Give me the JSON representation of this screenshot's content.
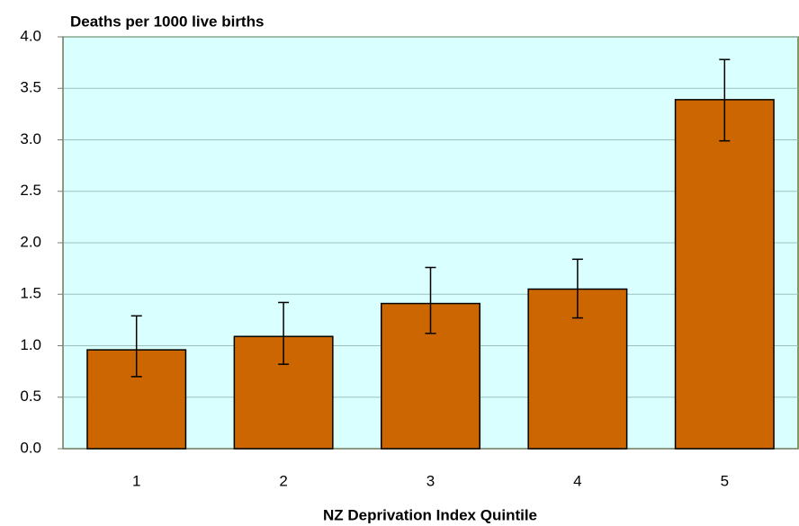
{
  "chart_data": {
    "type": "bar",
    "y_label": "Deaths per 1000 live births",
    "x_label": "NZ Deprivation Index Quintile",
    "categories": [
      "1",
      "2",
      "3",
      "4",
      "5"
    ],
    "values": [
      0.96,
      1.09,
      1.41,
      1.55,
      3.39
    ],
    "error_low": [
      0.7,
      0.82,
      1.12,
      1.27,
      2.99
    ],
    "error_high": [
      1.29,
      1.42,
      1.76,
      1.84,
      3.78
    ],
    "color": "#cc6600",
    "ylim": [
      0,
      4
    ],
    "yticks": [
      {
        "value": 0,
        "label": "0.0"
      },
      0.5,
      {
        "value": 1,
        "label": "1.0"
      },
      1.5,
      {
        "value": 2,
        "label": "2.0"
      },
      2.5,
      {
        "value": 3,
        "label": "3.0"
      },
      3.5,
      {
        "value": 4,
        "label": "4.0"
      }
    ],
    "grid": true,
    "background": "#d9ffff"
  }
}
